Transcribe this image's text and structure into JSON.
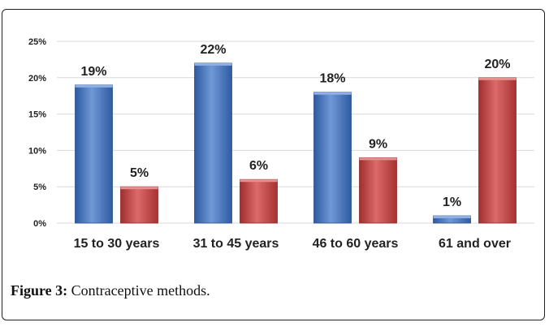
{
  "chart_data": {
    "type": "bar",
    "categories": [
      "15 to 30 years",
      "31 to 45 years",
      "46 to 60 years",
      "61 and over"
    ],
    "series": [
      {
        "values": [
          19,
          22,
          18,
          1
        ],
        "labels": [
          "19%",
          "22%",
          "18%",
          "1%"
        ]
      },
      {
        "values": [
          5,
          6,
          9,
          20
        ],
        "labels": [
          "5%",
          "6%",
          "9%",
          "20%"
        ]
      }
    ],
    "yticks": [
      "0%",
      "5%",
      "10%",
      "15%",
      "20%",
      "25%"
    ],
    "ylim": [
      0,
      25
    ],
    "grid": true,
    "colors": [
      "#4a78bf",
      "#c94444"
    ]
  },
  "caption": {
    "lead": "Figure 3:",
    "text": " Contraceptive methods."
  }
}
